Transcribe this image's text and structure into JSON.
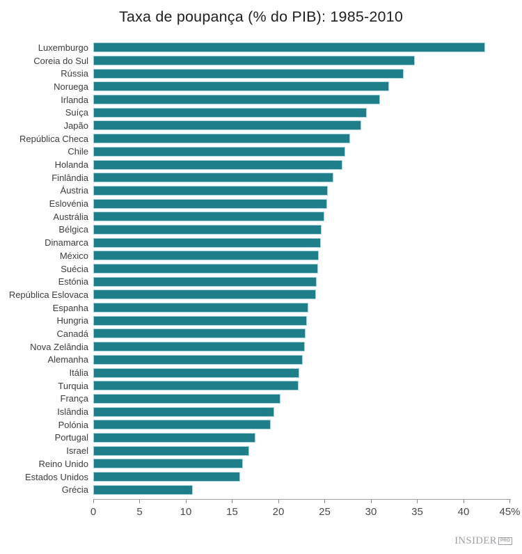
{
  "title": "Taxa de poupança (% do PIB): 1985-2010",
  "logo": {
    "name": "INSIDER",
    "suffix": "PRO"
  },
  "chart_data": {
    "type": "bar",
    "orientation": "horizontal",
    "title": "Taxa de poupança (% do PIB): 1985-2010",
    "xlabel": "",
    "ylabel": "",
    "xlim": [
      0,
      45
    ],
    "grid": false,
    "legend": false,
    "categories": [
      "Luxemburgo",
      "Coreia do Sul",
      "Rússia",
      "Noruega",
      "Irlanda",
      "Suíça",
      "Japão",
      "República Checa",
      "Chile",
      "Holanda",
      "Finlândia",
      "Áustria",
      "Eslovénia",
      "Austrália",
      "Bélgica",
      "Dinamarca",
      "México",
      "Suécia",
      "Estónia",
      "República Eslovaca",
      "Espanha",
      "Hungria",
      "Canadá",
      "Nova Zelândia",
      "Alemanha",
      "Itália",
      "Turquia",
      "França",
      "Islândia",
      "Polónia",
      "Portugal",
      "Israel",
      "Reino Unido",
      "Estados Unidos",
      "Grécia"
    ],
    "values": [
      42.2,
      34.6,
      33.4,
      31.8,
      30.8,
      29.4,
      28.8,
      27.6,
      27.1,
      26.8,
      25.8,
      25.2,
      25.1,
      24.8,
      24.5,
      24.4,
      24.2,
      24.1,
      24.0,
      23.9,
      23.1,
      22.9,
      22.8,
      22.7,
      22.5,
      22.1,
      22.0,
      20.1,
      19.4,
      19.0,
      17.4,
      16.7,
      16.0,
      15.7,
      10.6
    ],
    "xticks": [
      0,
      5,
      10,
      15,
      20,
      25,
      30,
      35,
      40,
      45
    ],
    "xtick_labels": [
      "0",
      "5",
      "10",
      "15",
      "20",
      "25",
      "30",
      "35",
      "40",
      "45%"
    ],
    "bar_color": "#1e7f8b",
    "bar_border_color": "#a9d4da",
    "axis_color": "#9b9b9b",
    "tick_label_color": "#4a4a4a",
    "category_label_color": "#3d3d3d",
    "title_color": "#1f1f1f"
  }
}
